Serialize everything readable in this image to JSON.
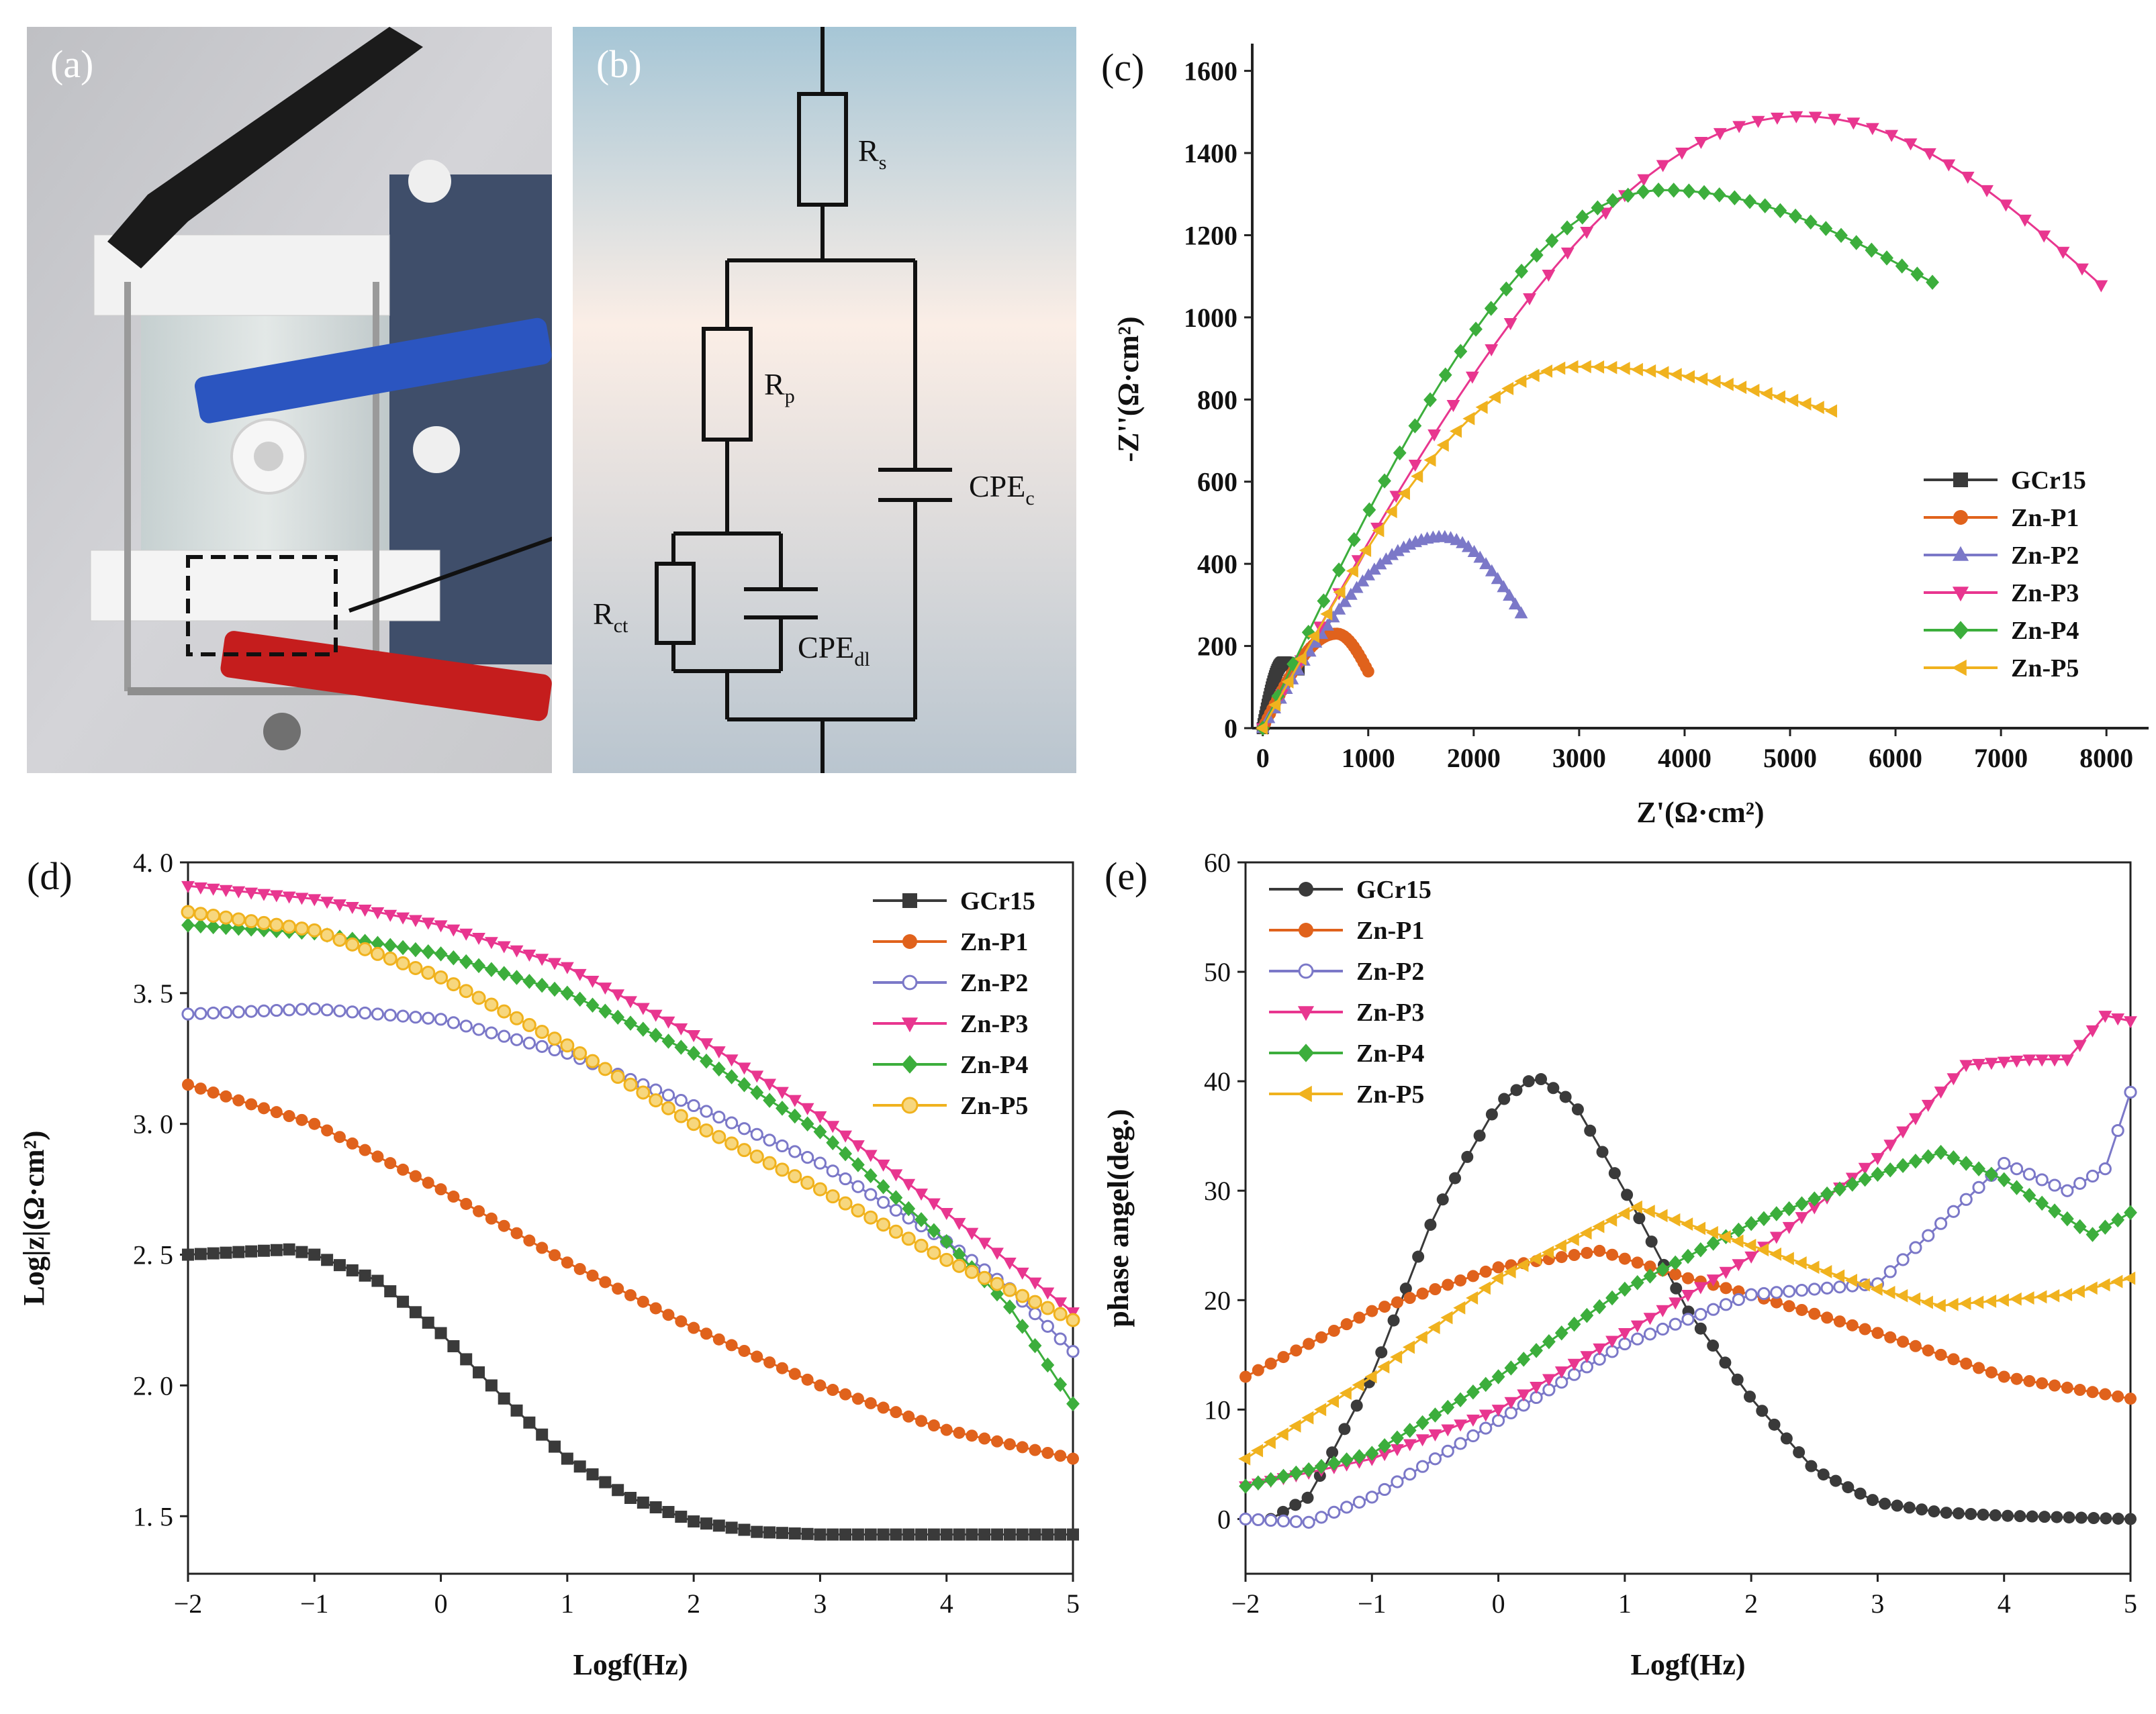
{
  "panels": {
    "a": {
      "label": "(a)"
    },
    "b": {
      "label": "(b)"
    },
    "c": {
      "label": "(c)"
    },
    "d": {
      "label": "(d)"
    },
    "e": {
      "label": "(e)"
    }
  },
  "circuit": {
    "rs": "R",
    "rs_sub": "s",
    "rp": "R",
    "rp_sub": "p",
    "rct": "R",
    "rct_sub": "ct",
    "cpe_c": "CPE",
    "cpe_c_sub": "c",
    "cpe_dl": "CPE",
    "cpe_dl_sub": "dl"
  },
  "chart_data": [
    {
      "id": "c",
      "type": "scatter",
      "title": "",
      "xlabel": "Z'(Ω·cm²)",
      "ylabel": "-Z''(Ω·cm²)",
      "xlim": [
        -100,
        8400
      ],
      "ylim": [
        0,
        1650
      ],
      "xticks": [
        0,
        1000,
        2000,
        3000,
        4000,
        5000,
        6000,
        7000,
        8000
      ],
      "yticks": [
        0,
        200,
        400,
        600,
        800,
        1000,
        1200,
        1400,
        1600
      ],
      "legend": "right-middle",
      "series": [
        {
          "name": "GCr15",
          "color": "#3a3a3a",
          "marker": "square",
          "arc": {
            "x0": 0,
            "x1": 340,
            "peak": 160,
            "peak_x": 200,
            "r": 0.45
          }
        },
        {
          "name": "Zn-P1",
          "color": "#e0621c",
          "marker": "circle",
          "arc": {
            "x0": 0,
            "x1": 1000,
            "peak": 230,
            "peak_x": 700,
            "r": 0.8
          }
        },
        {
          "name": "Zn-P2",
          "color": "#7b78c8",
          "marker": "triangle-up",
          "arc": {
            "x0": 0,
            "x1": 2450,
            "peak": 465,
            "peak_x": 1700,
            "r": 0.8
          }
        },
        {
          "name": "Zn-P3",
          "color": "#e8368f",
          "marker": "triangle-down",
          "arc": {
            "x0": 0,
            "x1": 7950,
            "peak": 1490,
            "peak_x": 5100,
            "r": 0.69
          }
        },
        {
          "name": "Zn-P4",
          "color": "#3cae3c",
          "marker": "diamond",
          "arc": {
            "x0": 0,
            "x1": 6350,
            "peak": 1310,
            "peak_x": 3800,
            "r": 0.56
          }
        },
        {
          "name": "Zn-P5",
          "color": "#f0b21e",
          "marker": "triangle-left",
          "arc": {
            "x0": 0,
            "x1": 5400,
            "peak": 880,
            "peak_x": 3000,
            "r": 0.48
          }
        }
      ]
    },
    {
      "id": "d",
      "type": "line",
      "title": "",
      "xlabel": "Logf(Hz)",
      "ylabel": "Log|z|(Ω·cm²)",
      "xlim": [
        -2,
        5
      ],
      "ylim": [
        1.28,
        4.0
      ],
      "xticks": [
        -2,
        -1,
        0,
        1,
        2,
        3,
        4,
        5
      ],
      "yticks": [
        1.5,
        2.0,
        2.5,
        3.0,
        3.5,
        4.0
      ],
      "xtick_labels": [
        "−2",
        "−1",
        "0",
        "1",
        "2",
        "3",
        "4",
        "5"
      ],
      "ytick_labels": [
        "1. 5",
        "2. 0",
        "2. 5",
        "3. 0",
        "3. 5",
        "4. 0"
      ],
      "legend": "top-right",
      "series": [
        {
          "name": "GCr15",
          "color": "#3a3a3a",
          "marker": "square",
          "x": [
            -2,
            -1.2,
            -1,
            -0.5,
            0,
            0.5,
            1,
            1.5,
            2,
            2.5,
            3,
            4,
            5
          ],
          "y": [
            2.5,
            2.52,
            2.5,
            2.4,
            2.2,
            1.95,
            1.72,
            1.57,
            1.48,
            1.44,
            1.43,
            1.43,
            1.43
          ]
        },
        {
          "name": "Zn-P1",
          "color": "#e0621c",
          "marker": "circle",
          "x": [
            -2,
            -1,
            0,
            1,
            2,
            3,
            4,
            5
          ],
          "y": [
            3.15,
            3.0,
            2.75,
            2.47,
            2.22,
            2.0,
            1.83,
            1.72
          ]
        },
        {
          "name": "Zn-P2",
          "color": "#7b78c8",
          "marker": "circle-open",
          "x": [
            -2,
            -1,
            0,
            1,
            2,
            3,
            4,
            4.5,
            5
          ],
          "y": [
            3.42,
            3.44,
            3.4,
            3.27,
            3.07,
            2.85,
            2.55,
            2.37,
            2.13
          ]
        },
        {
          "name": "Zn-P3",
          "color": "#e8368f",
          "marker": "triangle-down",
          "x": [
            -2,
            -1,
            0,
            1,
            2,
            3,
            4,
            5
          ],
          "y": [
            3.91,
            3.86,
            3.76,
            3.6,
            3.34,
            3.03,
            2.66,
            2.28
          ]
        },
        {
          "name": "Zn-P4",
          "color": "#3cae3c",
          "marker": "diamond",
          "x": [
            -2,
            -1,
            0,
            1,
            2,
            3,
            4,
            4.5,
            5
          ],
          "y": [
            3.76,
            3.73,
            3.65,
            3.5,
            3.27,
            2.97,
            2.55,
            2.3,
            1.93
          ]
        },
        {
          "name": "Zn-P5",
          "color": "#f0b21e",
          "marker": "circle-shaded",
          "x": [
            -2,
            -1,
            0,
            1,
            2,
            3,
            4,
            5
          ],
          "y": [
            3.81,
            3.74,
            3.56,
            3.3,
            3.0,
            2.75,
            2.48,
            2.25
          ]
        }
      ]
    },
    {
      "id": "e",
      "type": "line",
      "title": "",
      "xlabel": "Logf(Hz)",
      "ylabel": "phase angel(deg.)",
      "xlim": [
        -2,
        5
      ],
      "ylim": [
        -5,
        60
      ],
      "xticks": [
        -2,
        -1,
        0,
        1,
        2,
        3,
        4,
        5
      ],
      "yticks": [
        0,
        10,
        20,
        30,
        40,
        50,
        60
      ],
      "xtick_labels": [
        "−2",
        "−1",
        "0",
        "1",
        "2",
        "3",
        "4",
        "5"
      ],
      "ytick_labels": [
        "0",
        "10",
        "20",
        "30",
        "40",
        "50",
        "60"
      ],
      "legend": "top-left",
      "series": [
        {
          "name": "GCr15",
          "color": "#3a3a3a",
          "marker": "circle",
          "x": [
            -1.8,
            -1.5,
            -1,
            -0.5,
            0,
            0.3,
            0.6,
            1,
            1.5,
            2,
            2.5,
            3,
            3.5,
            4,
            5
          ],
          "y": [
            0,
            2,
            13,
            28,
            38,
            40.5,
            38,
            30,
            19,
            11,
            4.5,
            1.5,
            0.6,
            0.3,
            0
          ]
        },
        {
          "name": "Zn-P1",
          "color": "#e0621c",
          "marker": "circle",
          "x": [
            -2,
            -1,
            0,
            0.8,
            1.5,
            2,
            3,
            4,
            5
          ],
          "y": [
            13,
            19,
            23,
            24.5,
            22,
            20.5,
            17,
            13,
            11
          ]
        },
        {
          "name": "Zn-P2",
          "color": "#7b78c8",
          "marker": "circle-open",
          "x": [
            -2,
            -1.5,
            -1,
            0,
            1,
            2,
            3,
            3.5,
            4,
            4.5,
            4.8,
            5
          ],
          "y": [
            0,
            -0.3,
            2,
            9,
            16,
            20.5,
            21.5,
            27,
            32.5,
            30,
            32,
            39
          ]
        },
        {
          "name": "Zn-P3",
          "color": "#e8368f",
          "marker": "triangle-down",
          "x": [
            -2,
            -1,
            0,
            1,
            2,
            3,
            3.7,
            4.2,
            4.5,
            4.8,
            5
          ],
          "y": [
            3,
            5.5,
            10,
            17,
            24,
            33,
            41.5,
            42,
            42,
            46,
            45.5
          ]
        },
        {
          "name": "Zn-P4",
          "color": "#3cae3c",
          "marker": "diamond",
          "x": [
            -2,
            -1,
            0,
            1,
            2,
            3,
            3.5,
            4,
            4.7,
            5
          ],
          "y": [
            3,
            6,
            13,
            21,
            27,
            31.5,
            33.5,
            31,
            26,
            28
          ]
        },
        {
          "name": "Zn-P5",
          "color": "#f0b21e",
          "marker": "triangle-left",
          "x": [
            -2,
            -1,
            0,
            1.1,
            2,
            3,
            3.5,
            4,
            4.5,
            5
          ],
          "y": [
            5.5,
            13,
            22,
            28.5,
            25,
            21,
            19.5,
            20,
            20.5,
            22
          ]
        }
      ]
    }
  ]
}
